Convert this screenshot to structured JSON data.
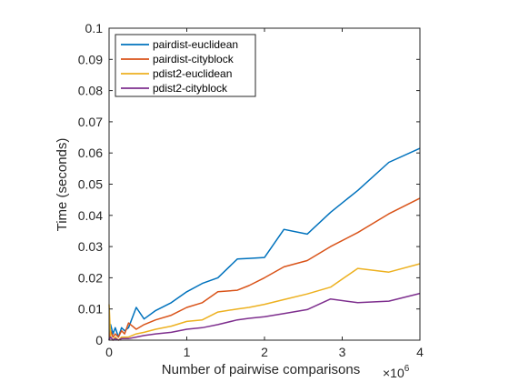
{
  "chart_data": {
    "type": "line",
    "title": "",
    "xlabel": "Number of pairwise comparisons",
    "x_exponent_label": "×10",
    "x_exponent_power": "6",
    "ylabel": "Time (seconds)",
    "xlim": [
      0,
      4
    ],
    "ylim": [
      0,
      0.1
    ],
    "xticks": [
      "0",
      "1",
      "2",
      "3",
      "4"
    ],
    "yticks": [
      "0",
      "0.01",
      "0.02",
      "0.03",
      "0.04",
      "0.05",
      "0.06",
      "0.07",
      "0.08",
      "0.09",
      "0.1"
    ],
    "xtick_values": [
      0,
      1,
      2,
      3,
      4
    ],
    "ytick_values": [
      0,
      0.01,
      0.02,
      0.03,
      0.04,
      0.05,
      0.06,
      0.07,
      0.08,
      0.09,
      0.1
    ],
    "grid": false,
    "legend_position": "top-left",
    "series": [
      {
        "name": "pairdist-euclidean",
        "color": "#0072BD",
        "x": [
          0.0,
          0.02,
          0.05,
          0.08,
          0.12,
          0.16,
          0.2,
          0.25,
          0.35,
          0.45,
          0.6,
          0.8,
          1.0,
          1.2,
          1.4,
          1.65,
          1.8,
          2.0,
          2.25,
          2.55,
          2.85,
          3.2,
          3.6,
          4.0
        ],
        "y": [
          0.0,
          0.005,
          0.002,
          0.004,
          0.001,
          0.004,
          0.003,
          0.004,
          0.0105,
          0.0068,
          0.0095,
          0.012,
          0.0155,
          0.0182,
          0.02,
          0.026,
          0.0262,
          0.0265,
          0.0355,
          0.034,
          0.041,
          0.048,
          0.057,
          0.0615
        ]
      },
      {
        "name": "pairdist-cityblock",
        "color": "#D95319",
        "x": [
          0.0,
          0.02,
          0.05,
          0.08,
          0.12,
          0.16,
          0.2,
          0.25,
          0.35,
          0.45,
          0.6,
          0.8,
          1.0,
          1.2,
          1.4,
          1.65,
          1.8,
          2.0,
          2.25,
          2.55,
          2.85,
          3.2,
          3.6,
          4.0
        ],
        "y": [
          0.0,
          0.003,
          0.001,
          0.002,
          0.001,
          0.003,
          0.002,
          0.0055,
          0.0035,
          0.005,
          0.0065,
          0.008,
          0.0105,
          0.012,
          0.0155,
          0.016,
          0.0175,
          0.02,
          0.0235,
          0.0255,
          0.03,
          0.0345,
          0.0405,
          0.0455
        ]
      },
      {
        "name": "pdist2-euclidean",
        "color": "#EDB120",
        "x": [
          0.0,
          0.02,
          0.05,
          0.08,
          0.12,
          0.16,
          0.2,
          0.25,
          0.35,
          0.45,
          0.6,
          0.8,
          1.0,
          1.2,
          1.4,
          1.65,
          1.8,
          2.0,
          2.25,
          2.55,
          2.85,
          3.2,
          3.6,
          4.0
        ],
        "y": [
          0.0115,
          0.001,
          0.0,
          0.001,
          0.0,
          0.001,
          0.001,
          0.001,
          0.002,
          0.0025,
          0.0035,
          0.0045,
          0.006,
          0.0065,
          0.009,
          0.01,
          0.0105,
          0.0115,
          0.013,
          0.0148,
          0.017,
          0.023,
          0.0218,
          0.0245
        ]
      },
      {
        "name": "pdist2-cityblock",
        "color": "#7E2F8E",
        "x": [
          0.0,
          0.02,
          0.05,
          0.08,
          0.12,
          0.16,
          0.2,
          0.25,
          0.35,
          0.45,
          0.6,
          0.8,
          1.0,
          1.2,
          1.4,
          1.65,
          1.8,
          2.0,
          2.25,
          2.55,
          2.85,
          3.2,
          3.6,
          4.0
        ],
        "y": [
          0.0,
          0.001,
          0.0,
          0.0005,
          0.0,
          0.0005,
          0.0005,
          0.0005,
          0.001,
          0.0015,
          0.002,
          0.0025,
          0.0035,
          0.004,
          0.005,
          0.0065,
          0.007,
          0.0075,
          0.0085,
          0.0098,
          0.0132,
          0.012,
          0.0125,
          0.015
        ]
      }
    ]
  }
}
